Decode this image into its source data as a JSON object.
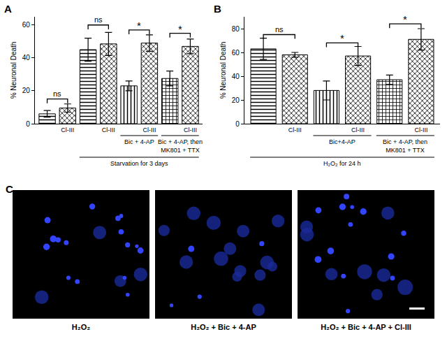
{
  "chart_data": [
    {
      "type": "bar",
      "panel": "A",
      "y_label": "% Neuronal Death",
      "categories": [
        null,
        "Cl-III",
        null,
        "Cl-III",
        null,
        "Cl-III",
        null,
        "Cl-III"
      ],
      "values": [
        6,
        9.5,
        45,
        48.5,
        23,
        49,
        27.5,
        47
      ],
      "errors": [
        2,
        2.5,
        7,
        7,
        3,
        5,
        4.5,
        4.5
      ],
      "ylim": [
        0,
        65
      ],
      "yticks": [
        0,
        20,
        40,
        60
      ],
      "grid": false,
      "color": "#ffffff",
      "comparisons": [
        {
          "from": 0,
          "to": 1,
          "y": 15,
          "label": "ns"
        },
        {
          "from": 2,
          "to": 3,
          "y": 60,
          "label": "ns"
        },
        {
          "from": 4,
          "to": 5,
          "y": 57,
          "label": "*"
        },
        {
          "from": 6,
          "to": 7,
          "y": 55,
          "label": "*"
        }
      ],
      "group_rows": [
        [
          {
            "from": 4,
            "to": 5,
            "lines": [
              "Bic + 4-AP"
            ]
          },
          {
            "from": 6,
            "to": 7,
            "lines": [
              "Bic + 4-AP, then",
              "MK801 + TTX"
            ]
          }
        ],
        [
          {
            "from": 2,
            "to": 7,
            "lines": [
              "Starvation for 3 days"
            ]
          }
        ]
      ]
    },
    {
      "type": "bar",
      "panel": "B",
      "y_label": "% Neuronal Death",
      "categories": [
        null,
        "Cl-III",
        null,
        "Cl-III",
        null,
        "Cl-III"
      ],
      "values": [
        63,
        58,
        28,
        57,
        37,
        71
      ],
      "errors": [
        9,
        2,
        8,
        8,
        4,
        9
      ],
      "ylim": [
        0,
        90
      ],
      "yticks": [
        0,
        20,
        40,
        60,
        80
      ],
      "grid": false,
      "color": "#ffffff",
      "comparisons": [
        {
          "from": 0,
          "to": 1,
          "y": 75,
          "label": "ns"
        },
        {
          "from": 2,
          "to": 3,
          "y": 68,
          "label": "*"
        },
        {
          "from": 4,
          "to": 5,
          "y": 84,
          "label": "*"
        }
      ],
      "group_rows": [
        [
          {
            "from": 2,
            "to": 3,
            "lines": [
              "Bic+4-AP"
            ]
          },
          {
            "from": 4,
            "to": 5,
            "lines": [
              "Bic + 4-AP, then",
              "MK801 + TTX"
            ]
          }
        ],
        [
          {
            "from": 0,
            "to": 5,
            "lines": [
              "H₂O₂ for 24 h"
            ]
          }
        ]
      ]
    }
  ],
  "panel_c": {
    "label": "C",
    "images": [
      {
        "caption": "H₂O₂"
      },
      {
        "caption": "H₂O₂ + Bic + 4-AP"
      },
      {
        "caption": "H₂O₂ + Bic + 4-AP + Cl-III"
      }
    ]
  }
}
